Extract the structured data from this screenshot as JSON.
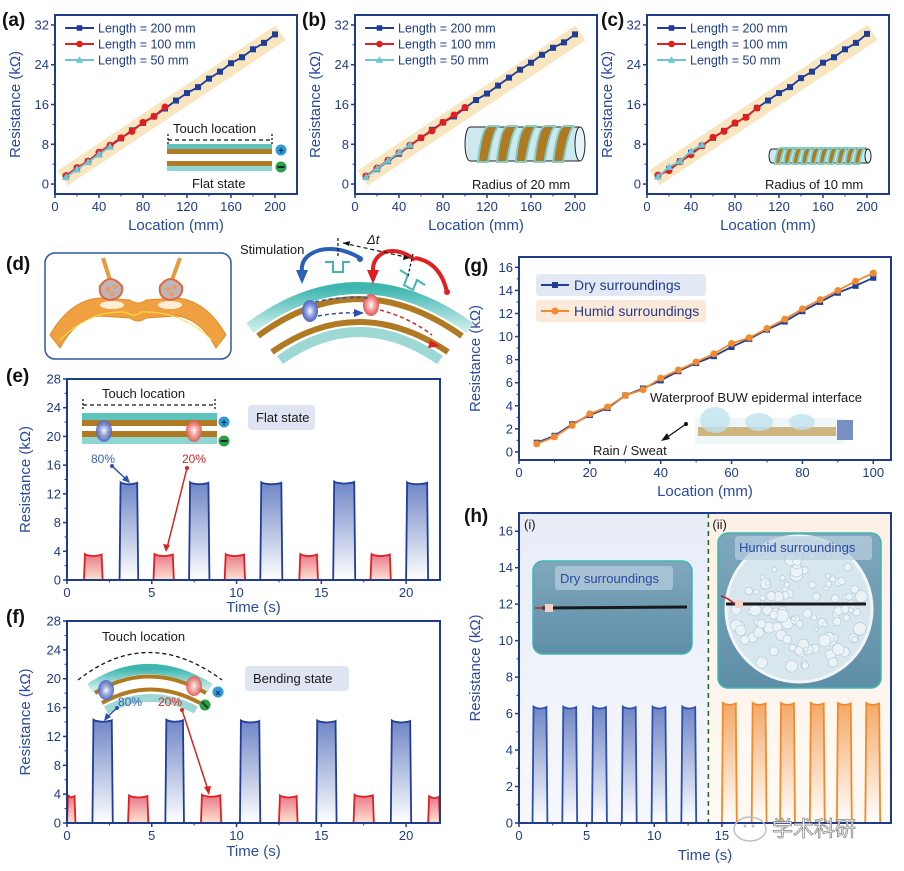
{
  "figure": {
    "panels": [
      "(a)",
      "(b)",
      "(c)",
      "(d)",
      "(e)",
      "(f)",
      "(g)",
      "(h)"
    ],
    "colors": {
      "axis": "#1f3b8a",
      "blue_series": "#1f3d99",
      "red_series": "#e02020",
      "cyan_series": "#6cc6d8",
      "orange_series": "#f28a2c",
      "band": "#f7e6bf",
      "teal": "#3fb6b0",
      "brown": "#b07a22"
    }
  },
  "chart_data": [
    {
      "id": "a",
      "type": "line",
      "panel_label": "(a)",
      "xlabel": "Location (mm)",
      "ylabel": "Resistance (kΩ)",
      "xlim": [
        0,
        220
      ],
      "ylim": [
        -2,
        34
      ],
      "xticks": [
        0,
        40,
        80,
        120,
        160,
        200
      ],
      "yticks": [
        0,
        8,
        16,
        24,
        32
      ],
      "legend_position": "top-left",
      "inset_caption": "Flat state",
      "inset_label": "Touch location",
      "series": [
        {
          "name": "Length = 200 mm",
          "marker": "square",
          "color": "#1f3d99",
          "x": [
            10,
            20,
            30,
            40,
            50,
            60,
            70,
            80,
            90,
            100,
            110,
            120,
            130,
            140,
            150,
            160,
            170,
            180,
            190,
            200
          ],
          "y": [
            1.5,
            3.0,
            4.5,
            6.0,
            7.6,
            9.2,
            10.8,
            12.3,
            13.6,
            15.2,
            16.8,
            18.3,
            19.5,
            21.2,
            22.6,
            24.3,
            25.5,
            27.1,
            28.4,
            30.1
          ]
        },
        {
          "name": "Length = 100 mm",
          "marker": "circle",
          "color": "#e02020",
          "x": [
            10,
            20,
            30,
            40,
            50,
            60,
            70,
            80,
            90,
            100
          ],
          "y": [
            1.7,
            3.3,
            4.6,
            6.4,
            7.8,
            9.3,
            10.6,
            12.4,
            13.6,
            15.5
          ]
        },
        {
          "name": "Length = 50 mm",
          "marker": "triangle",
          "color": "#6cc6d8",
          "x": [
            10,
            20,
            30,
            40,
            50
          ],
          "y": [
            1.4,
            3.0,
            4.4,
            6.0,
            7.5
          ]
        }
      ]
    },
    {
      "id": "b",
      "type": "line",
      "panel_label": "(b)",
      "xlabel": "Location (mm)",
      "ylabel": "Resistance (kΩ)",
      "xlim": [
        0,
        220
      ],
      "ylim": [
        -2,
        34
      ],
      "xticks": [
        0,
        40,
        80,
        120,
        160,
        200
      ],
      "yticks": [
        0,
        8,
        16,
        24,
        32
      ],
      "legend_position": "top-left",
      "inset_caption": "Radius of 20 mm",
      "series": [
        {
          "name": "Length = 200 mm",
          "marker": "square",
          "color": "#1f3d99",
          "x": [
            10,
            20,
            30,
            40,
            50,
            60,
            70,
            80,
            90,
            100,
            110,
            120,
            130,
            140,
            150,
            160,
            170,
            180,
            190,
            200
          ],
          "y": [
            1.5,
            3.0,
            4.6,
            6.1,
            7.7,
            9.3,
            10.9,
            12.4,
            13.6,
            15.3,
            16.9,
            18.2,
            19.8,
            21.4,
            23.0,
            24.4,
            26.0,
            27.4,
            28.5,
            30.1
          ]
        },
        {
          "name": "Length = 100 mm",
          "marker": "circle",
          "color": "#e02020",
          "x": [
            10,
            20,
            30,
            40,
            50,
            60,
            70,
            80,
            90,
            100
          ],
          "y": [
            1.6,
            3.2,
            4.8,
            6.3,
            7.8,
            9.3,
            10.7,
            12.4,
            13.9,
            15.4
          ]
        },
        {
          "name": "Length = 50 mm",
          "marker": "triangle",
          "color": "#6cc6d8",
          "x": [
            10,
            20,
            30,
            40,
            50
          ],
          "y": [
            1.4,
            3.1,
            4.7,
            6.4,
            7.9
          ]
        }
      ]
    },
    {
      "id": "c",
      "type": "line",
      "panel_label": "(c)",
      "xlabel": "Location (mm)",
      "ylabel": "Resistance (kΩ)",
      "xlim": [
        0,
        220
      ],
      "ylim": [
        -2,
        34
      ],
      "xticks": [
        0,
        40,
        80,
        120,
        160,
        200
      ],
      "yticks": [
        0,
        8,
        16,
        24,
        32
      ],
      "legend_position": "top-left",
      "inset_caption": "Radius of 10 mm",
      "series": [
        {
          "name": "Length = 200 mm",
          "marker": "square",
          "color": "#1f3d99",
          "x": [
            10,
            20,
            30,
            40,
            50,
            60,
            70,
            80,
            90,
            100,
            110,
            120,
            130,
            140,
            150,
            160,
            170,
            180,
            190,
            200
          ],
          "y": [
            1.6,
            3.0,
            4.6,
            6.3,
            7.7,
            9.3,
            10.7,
            12.2,
            13.5,
            15.3,
            16.8,
            18.3,
            19.5,
            21.3,
            22.6,
            24.4,
            25.5,
            27.1,
            28.4,
            30.2
          ]
        },
        {
          "name": "Length = 100 mm",
          "marker": "circle",
          "color": "#e02020",
          "x": [
            10,
            20,
            30,
            40,
            50,
            60,
            70,
            80,
            90,
            100
          ],
          "y": [
            1.8,
            2.7,
            4.5,
            5.9,
            7.7,
            9.4,
            10.6,
            12.3,
            13.4,
            15.3
          ]
        },
        {
          "name": "Length = 50 mm",
          "marker": "triangle",
          "color": "#6cc6d8",
          "x": [
            10,
            20,
            30,
            40,
            50
          ],
          "y": [
            1.5,
            3.4,
            4.6,
            6.6,
            7.9
          ]
        }
      ]
    },
    {
      "id": "e",
      "type": "area",
      "panel_label": "(e)",
      "xlabel": "Time (s)",
      "ylabel": "Resistance (kΩ)",
      "xlim": [
        0,
        22
      ],
      "ylim": [
        0,
        28
      ],
      "xticks": [
        0,
        5,
        10,
        15,
        20
      ],
      "yticks": [
        0,
        4,
        8,
        12,
        16,
        20,
        24,
        28
      ],
      "annotations": {
        "badge": "Flat state",
        "inset_label": "Touch location",
        "label_80": "80%",
        "label_20": "20%"
      },
      "pulses": [
        {
          "start": 1.0,
          "end": 2.1,
          "value": 3.4,
          "series": "20%"
        },
        {
          "start": 3.1,
          "end": 4.2,
          "value": 13.4,
          "series": "80%"
        },
        {
          "start": 5.1,
          "end": 6.3,
          "value": 3.4,
          "series": "20%"
        },
        {
          "start": 7.2,
          "end": 8.4,
          "value": 13.4,
          "series": "80%"
        },
        {
          "start": 9.3,
          "end": 10.5,
          "value": 3.4,
          "series": "20%"
        },
        {
          "start": 11.4,
          "end": 12.7,
          "value": 13.4,
          "series": "80%"
        },
        {
          "start": 13.7,
          "end": 14.8,
          "value": 3.4,
          "series": "20%"
        },
        {
          "start": 15.7,
          "end": 17.0,
          "value": 13.5,
          "series": "80%"
        },
        {
          "start": 17.9,
          "end": 19.1,
          "value": 3.4,
          "series": "20%"
        },
        {
          "start": 20.0,
          "end": 21.3,
          "value": 13.4,
          "series": "80%"
        }
      ]
    },
    {
      "id": "f",
      "type": "area",
      "panel_label": "(f)",
      "xlabel": "Time (s)",
      "ylabel": "Resistance (kΩ)",
      "xlim": [
        0,
        22
      ],
      "ylim": [
        0,
        28
      ],
      "xticks": [
        0,
        5,
        10,
        15,
        20
      ],
      "yticks": [
        0,
        4,
        8,
        12,
        16,
        20,
        24,
        28
      ],
      "annotations": {
        "badge": "Bending state",
        "inset_label": "Touch location",
        "label_80": "80%",
        "label_20": "20%"
      },
      "pulses": [
        {
          "start": 0.0,
          "end": 0.5,
          "value": 3.6,
          "series": "20%"
        },
        {
          "start": 1.5,
          "end": 2.7,
          "value": 14.1,
          "series": "80%"
        },
        {
          "start": 3.6,
          "end": 4.8,
          "value": 3.6,
          "series": "20%"
        },
        {
          "start": 5.8,
          "end": 6.9,
          "value": 14.1,
          "series": "80%"
        },
        {
          "start": 7.9,
          "end": 9.1,
          "value": 3.7,
          "series": "20%"
        },
        {
          "start": 10.2,
          "end": 11.4,
          "value": 14.0,
          "series": "80%"
        },
        {
          "start": 12.5,
          "end": 13.6,
          "value": 3.6,
          "series": "20%"
        },
        {
          "start": 14.7,
          "end": 15.9,
          "value": 14.0,
          "series": "80%"
        },
        {
          "start": 16.9,
          "end": 18.1,
          "value": 3.7,
          "series": "20%"
        },
        {
          "start": 19.1,
          "end": 20.3,
          "value": 14.0,
          "series": "80%"
        },
        {
          "start": 21.3,
          "end": 22.0,
          "value": 3.5,
          "series": "20%"
        }
      ]
    },
    {
      "id": "g",
      "type": "line",
      "panel_label": "(g)",
      "xlabel": "Location (mm)",
      "ylabel": "Resistance (kΩ)",
      "xlim": [
        0,
        105
      ],
      "ylim": [
        -0.7,
        16.9
      ],
      "xticks": [
        0,
        20,
        40,
        60,
        80,
        100
      ],
      "yticks": [
        0,
        2,
        4,
        6,
        8,
        10,
        12,
        14,
        16
      ],
      "legend_position": "top-left",
      "annotations": {
        "inset_label": "Waterproof BUW epidermal interface",
        "arrow_label": "Rain / Sweat"
      },
      "series": [
        {
          "name": "Dry surroundings",
          "marker": "square",
          "color": "#1f3d99",
          "x": [
            5,
            10,
            15,
            20,
            25,
            30,
            35,
            40,
            45,
            50,
            55,
            60,
            65,
            70,
            75,
            80,
            85,
            90,
            95,
            100
          ],
          "y": [
            0.8,
            1.4,
            2.4,
            3.2,
            3.8,
            4.9,
            5.5,
            6.2,
            7.0,
            7.7,
            8.3,
            9.1,
            9.8,
            10.6,
            11.3,
            12.2,
            13.0,
            13.8,
            14.4,
            15.1
          ]
        },
        {
          "name": "Humid surroundings",
          "marker": "circle",
          "color": "#f28a2c",
          "x": [
            5,
            10,
            15,
            20,
            25,
            30,
            35,
            40,
            45,
            50,
            55,
            60,
            65,
            70,
            75,
            80,
            85,
            90,
            95,
            100
          ],
          "y": [
            0.7,
            1.3,
            2.3,
            3.3,
            3.9,
            4.9,
            5.4,
            6.4,
            7.1,
            7.8,
            8.5,
            9.4,
            9.9,
            10.7,
            11.5,
            12.4,
            13.2,
            14.0,
            14.8,
            15.5
          ]
        }
      ]
    },
    {
      "id": "h",
      "type": "area",
      "panel_label": "(h)",
      "xlabel": "Time (s)",
      "ylabel": "Resistance (kΩ)",
      "xlim": [
        0,
        27.5
      ],
      "ylim": [
        0,
        17
      ],
      "xticks": [
        0,
        5,
        10,
        15
      ],
      "yticks": [
        0,
        2,
        4,
        6,
        8,
        10,
        12,
        14,
        16
      ],
      "divider_x": 14,
      "annotations": {
        "region_i": "(i)",
        "region_ii": "(ii)",
        "photo_dry": "Dry surroundings",
        "photo_humid": "Humid surroundings",
        "watermark": "学术科研"
      },
      "pulses": [
        {
          "start": 1.0,
          "end": 2.1,
          "value": 6.3,
          "series": "dry"
        },
        {
          "start": 3.2,
          "end": 4.3,
          "value": 6.3,
          "series": "dry"
        },
        {
          "start": 5.4,
          "end": 6.5,
          "value": 6.3,
          "series": "dry"
        },
        {
          "start": 7.6,
          "end": 8.7,
          "value": 6.3,
          "series": "dry"
        },
        {
          "start": 9.8,
          "end": 10.9,
          "value": 6.3,
          "series": "dry"
        },
        {
          "start": 12.0,
          "end": 13.1,
          "value": 6.3,
          "series": "dry"
        },
        {
          "start": 15.0,
          "end": 16.1,
          "value": 6.5,
          "series": "humid"
        },
        {
          "start": 17.2,
          "end": 18.3,
          "value": 6.5,
          "series": "humid"
        },
        {
          "start": 19.3,
          "end": 20.4,
          "value": 6.5,
          "series": "humid"
        },
        {
          "start": 21.5,
          "end": 22.6,
          "value": 6.5,
          "series": "humid"
        },
        {
          "start": 23.5,
          "end": 24.6,
          "value": 6.5,
          "series": "humid"
        },
        {
          "start": 25.6,
          "end": 26.7,
          "value": 6.5,
          "series": "humid"
        }
      ]
    }
  ],
  "panel_d": {
    "label": "(d)",
    "stimulation": "Stimulation",
    "delta_t": "Δt"
  }
}
